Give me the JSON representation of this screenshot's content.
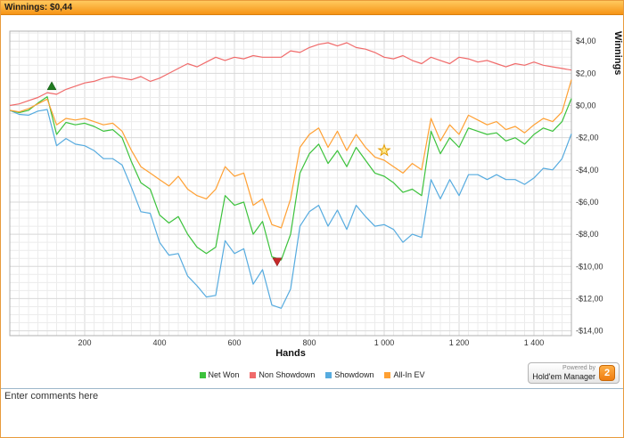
{
  "window": {
    "title": "Winnings: $0,44"
  },
  "chart_data": {
    "type": "line",
    "title": "",
    "xlabel": "Hands",
    "ylabel": "Winnings",
    "xlim": [
      0,
      1500
    ],
    "ylim": [
      -14.3,
      4.62
    ],
    "x_ticks": [
      "200",
      "400",
      "600",
      "800",
      "1 000",
      "1 200",
      "1 400"
    ],
    "x_tick_values": [
      200,
      400,
      600,
      800,
      1000,
      1200,
      1400
    ],
    "y_ticks": [
      "$4,00",
      "$2,00",
      "$0,00",
      "-$2,00",
      "-$4,00",
      "-$6,00",
      "-$8,00",
      "-$10,00",
      "-$12,00",
      "-$14,00"
    ],
    "y_tick_values": [
      4,
      2,
      0,
      -2,
      -4,
      -6,
      -8,
      -10,
      -12,
      -14
    ],
    "grid": {
      "on": true,
      "minor_x": 25,
      "minor_y": 0.5,
      "major_x": 200,
      "major_y": 2
    },
    "legend_position": "bottom",
    "x": [
      0,
      25,
      50,
      75,
      100,
      125,
      150,
      175,
      200,
      225,
      250,
      275,
      300,
      325,
      350,
      375,
      400,
      425,
      450,
      475,
      500,
      525,
      550,
      575,
      600,
      625,
      650,
      675,
      700,
      725,
      750,
      775,
      800,
      825,
      850,
      875,
      900,
      925,
      950,
      975,
      1000,
      1025,
      1050,
      1075,
      1100,
      1125,
      1150,
      1175,
      1200,
      1225,
      1250,
      1275,
      1300,
      1325,
      1350,
      1375,
      1400,
      1425,
      1450,
      1475,
      1500
    ],
    "series": [
      {
        "name": "Net Won",
        "color": "#3cc23c",
        "values": [
          -0.3,
          -0.45,
          -0.3,
          0.15,
          0.55,
          -1.8,
          -1.05,
          -1.2,
          -1.1,
          -1.3,
          -1.6,
          -1.5,
          -2.0,
          -3.5,
          -4.8,
          -5.2,
          -6.8,
          -7.3,
          -6.9,
          -8.0,
          -8.8,
          -9.2,
          -8.8,
          -5.6,
          -6.2,
          -6.0,
          -8.0,
          -7.2,
          -9.4,
          -9.6,
          -8.0,
          -4.2,
          -3.0,
          -2.4,
          -3.6,
          -2.8,
          -3.8,
          -2.6,
          -3.4,
          -4.2,
          -4.4,
          -4.8,
          -5.4,
          -5.2,
          -5.6,
          -1.6,
          -3.0,
          -2.0,
          -2.6,
          -1.4,
          -1.6,
          -1.8,
          -1.7,
          -2.2,
          -2.0,
          -2.4,
          -1.8,
          -1.4,
          -1.6,
          -1.0,
          0.44
        ]
      },
      {
        "name": "Non Showdown",
        "color": "#f06a6a",
        "values": [
          0.0,
          0.1,
          0.3,
          0.5,
          0.8,
          0.7,
          1.0,
          1.2,
          1.4,
          1.5,
          1.7,
          1.8,
          1.7,
          1.6,
          1.8,
          1.5,
          1.7,
          2.0,
          2.3,
          2.6,
          2.4,
          2.7,
          3.0,
          2.8,
          3.0,
          2.9,
          3.1,
          3.0,
          3.0,
          3.0,
          3.4,
          3.3,
          3.6,
          3.8,
          3.9,
          3.7,
          3.9,
          3.6,
          3.5,
          3.3,
          3.0,
          2.9,
          3.1,
          2.8,
          2.6,
          3.0,
          2.8,
          2.6,
          3.0,
          2.9,
          2.7,
          2.8,
          2.6,
          2.4,
          2.6,
          2.5,
          2.7,
          2.5,
          2.4,
          2.3,
          2.2
        ]
      },
      {
        "name": "Showdown",
        "color": "#56abdf",
        "values": [
          -0.3,
          -0.55,
          -0.6,
          -0.35,
          -0.25,
          -2.5,
          -2.05,
          -2.4,
          -2.5,
          -2.8,
          -3.3,
          -3.3,
          -3.7,
          -5.1,
          -6.6,
          -6.7,
          -8.5,
          -9.3,
          -9.2,
          -10.6,
          -11.2,
          -11.9,
          -11.8,
          -8.4,
          -9.2,
          -8.9,
          -11.1,
          -10.2,
          -12.4,
          -12.6,
          -11.4,
          -7.5,
          -6.6,
          -6.2,
          -7.5,
          -6.5,
          -7.7,
          -6.2,
          -6.9,
          -7.5,
          -7.4,
          -7.7,
          -8.5,
          -8.0,
          -8.2,
          -4.6,
          -5.8,
          -4.6,
          -5.6,
          -4.3,
          -4.3,
          -4.6,
          -4.3,
          -4.6,
          -4.6,
          -4.9,
          -4.5,
          -3.9,
          -4.0,
          -3.3,
          -1.76
        ]
      },
      {
        "name": "All-In EV",
        "color": "#ffa033",
        "values": [
          -0.3,
          -0.4,
          -0.2,
          0.1,
          0.4,
          -1.2,
          -0.8,
          -0.9,
          -0.8,
          -1.0,
          -1.2,
          -1.1,
          -1.6,
          -2.8,
          -3.8,
          -4.2,
          -4.6,
          -5.0,
          -4.4,
          -5.2,
          -5.6,
          -5.8,
          -5.2,
          -3.8,
          -4.4,
          -4.2,
          -6.2,
          -5.8,
          -7.4,
          -7.6,
          -5.8,
          -2.6,
          -1.8,
          -1.4,
          -2.6,
          -1.6,
          -2.8,
          -1.8,
          -2.6,
          -3.2,
          -3.4,
          -3.8,
          -4.2,
          -3.6,
          -4.0,
          -0.8,
          -2.2,
          -1.2,
          -1.8,
          -0.6,
          -0.9,
          -1.2,
          -1.0,
          -1.5,
          -1.3,
          -1.7,
          -1.2,
          -0.8,
          -1.0,
          -0.4,
          1.6
        ]
      }
    ],
    "markers": [
      {
        "type": "triangle-up",
        "color": "#1f7a1f",
        "x": 112,
        "y": 1.2
      },
      {
        "type": "triangle-down",
        "color": "#c62828",
        "x": 714,
        "y": -9.7
      },
      {
        "type": "star",
        "color": "#e09900",
        "x": 1000,
        "y": -2.8
      }
    ]
  },
  "footer": {
    "powered_by": "Powered by",
    "brand": "Hold'em Manager",
    "badge": "2"
  },
  "comments": {
    "placeholder": "Enter comments here"
  }
}
